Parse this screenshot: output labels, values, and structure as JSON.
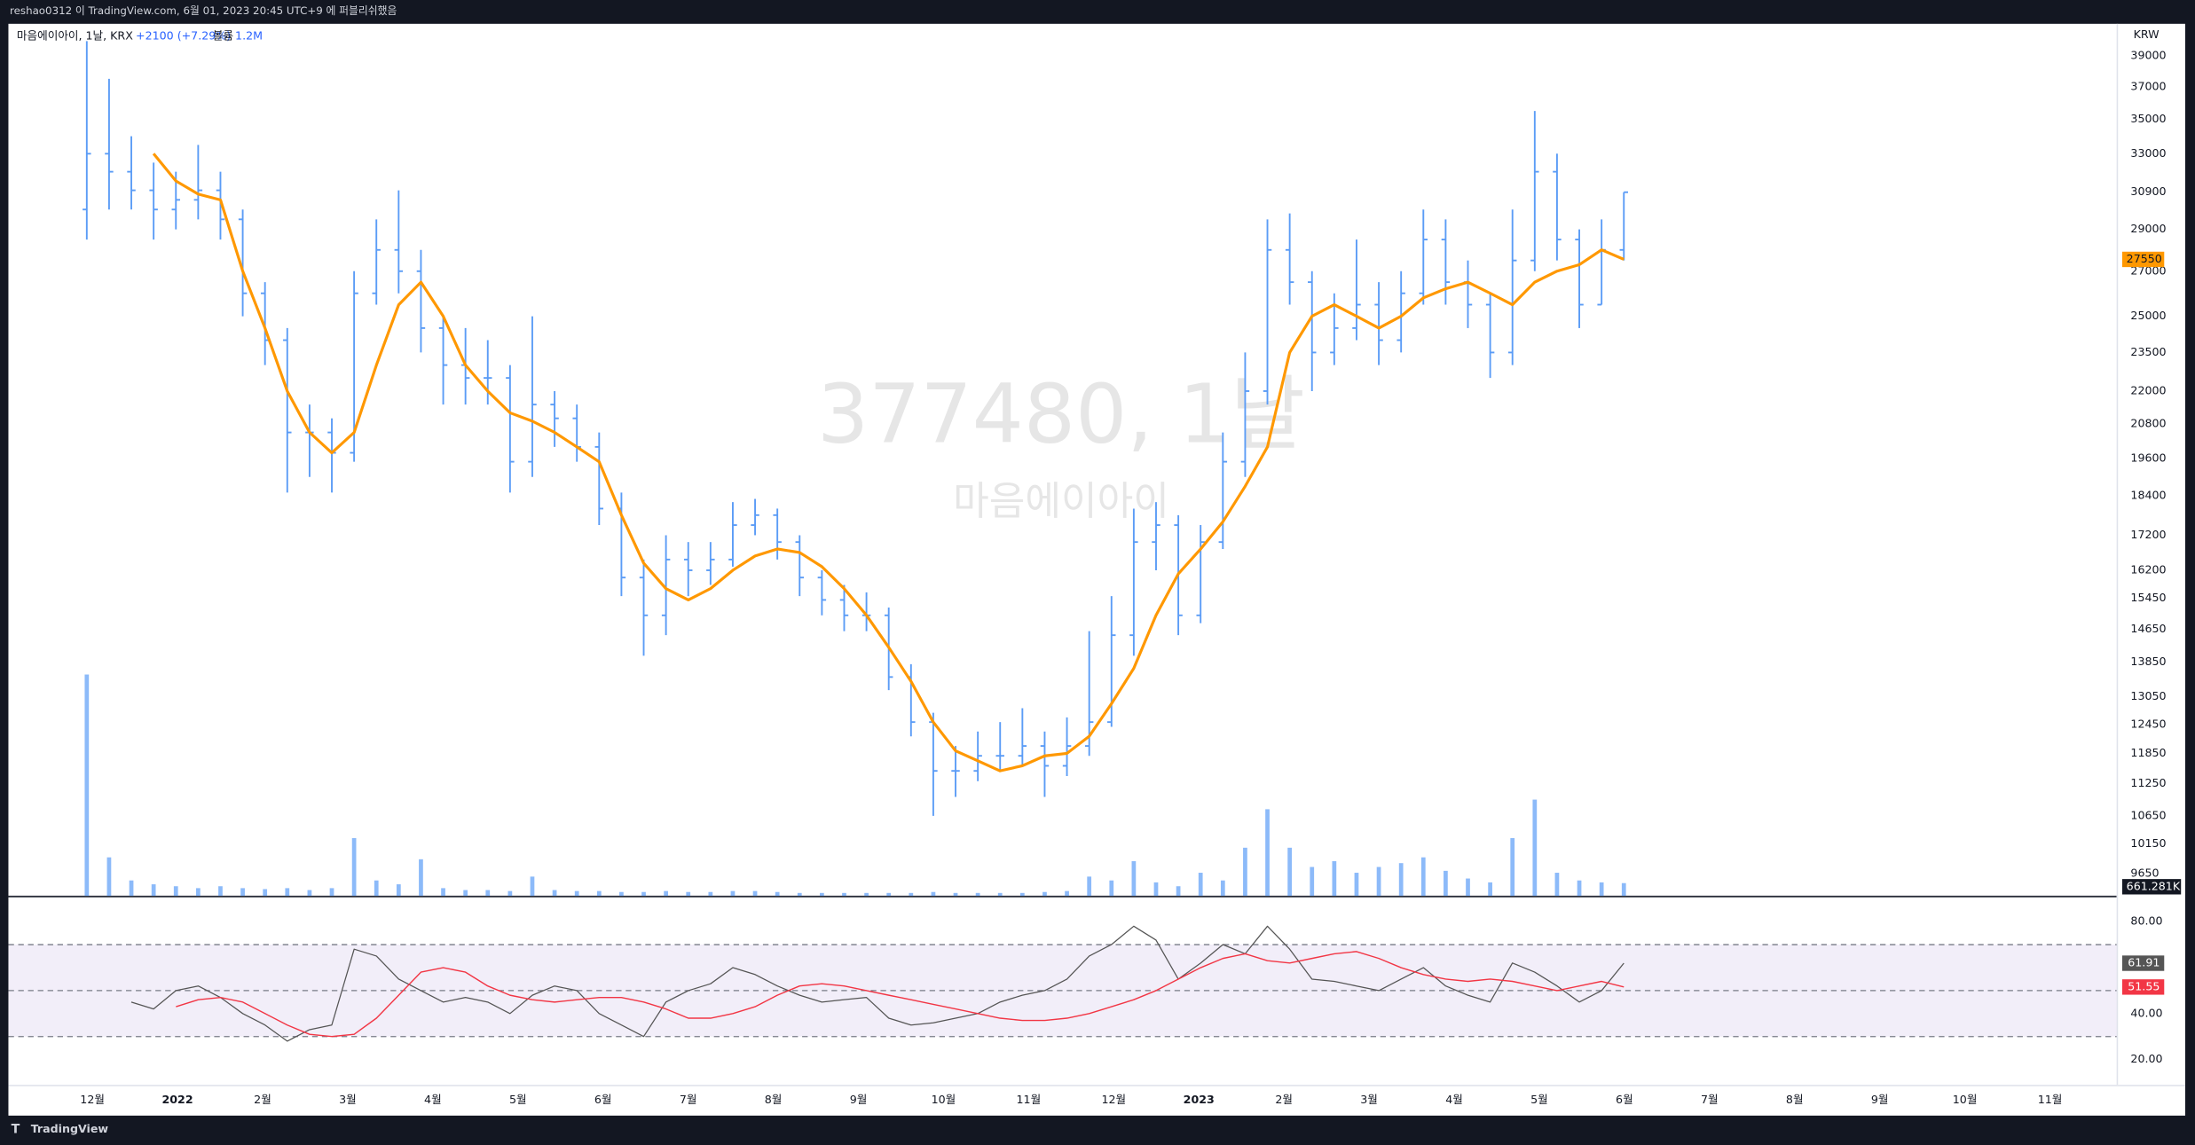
{
  "header": {
    "text": "reshao0312 이 TradingView.com, 6월 01, 2023 20:45 UTC+9 에 퍼블리쉬했음"
  },
  "footer": {
    "logo": "TradingView"
  },
  "chart_data": [
    {
      "type": "candlestick",
      "title": "마음에이아이, 1날, KRX",
      "change": "+2100 (+7.29%)",
      "watermark": [
        "377480, 1날",
        "마음에이아이"
      ],
      "currency": "KRW",
      "log_scale": true,
      "color": "#5b9cf6",
      "ylim": [
        9290,
        41100
      ],
      "yticks": [
        39000,
        37000,
        35000,
        33000,
        30900,
        29000,
        27000,
        25000,
        23500,
        22000,
        20800,
        19600,
        18400,
        17200,
        16200,
        15450,
        14650,
        13850,
        13050,
        12450,
        11850,
        11250,
        10650,
        10150,
        9650
      ],
      "x_labels": [
        "12월",
        "2022",
        "2월",
        "3월",
        "4월",
        "5월",
        "6월",
        "7월",
        "8월",
        "9월",
        "10월",
        "11월",
        "12월",
        "2023",
        "2월",
        "3월",
        "4월",
        "5월",
        "6월",
        "7월",
        "8월",
        "9월",
        "10월",
        "11월"
      ],
      "candles": [
        [
          30000,
          40000,
          28500,
          33000
        ],
        [
          33000,
          37500,
          30000,
          32000
        ],
        [
          32000,
          34000,
          30000,
          31000
        ],
        [
          31000,
          32500,
          28500,
          30000
        ],
        [
          30000,
          32000,
          29000,
          30500
        ],
        [
          30500,
          33500,
          29500,
          31000
        ],
        [
          31000,
          32000,
          28500,
          29500
        ],
        [
          29500,
          30000,
          25000,
          26000
        ],
        [
          26000,
          26500,
          23000,
          24000
        ],
        [
          24000,
          24500,
          18500,
          20500
        ],
        [
          20500,
          21500,
          19000,
          20500
        ],
        [
          20500,
          21000,
          18500,
          19800
        ],
        [
          19800,
          27000,
          19500,
          26000
        ],
        [
          26000,
          29500,
          25500,
          28000
        ],
        [
          28000,
          31000,
          26000,
          27000
        ],
        [
          27000,
          28000,
          23500,
          24500
        ],
        [
          24500,
          25000,
          21500,
          23000
        ],
        [
          23000,
          24500,
          21500,
          22500
        ],
        [
          22500,
          24000,
          21500,
          22500
        ],
        [
          22500,
          23000,
          18500,
          19500
        ],
        [
          19500,
          25000,
          19000,
          21500
        ],
        [
          21500,
          22000,
          20000,
          21000
        ],
        [
          21000,
          21500,
          19500,
          20000
        ],
        [
          20000,
          20500,
          17500,
          18000
        ],
        [
          18000,
          18500,
          15500,
          16000
        ],
        [
          16000,
          16500,
          14000,
          15000
        ],
        [
          15000,
          17200,
          14500,
          16500
        ],
        [
          16500,
          17000,
          15500,
          16200
        ],
        [
          16200,
          17000,
          15800,
          16500
        ],
        [
          16500,
          18200,
          16300,
          17500
        ],
        [
          17500,
          18300,
          17200,
          17800
        ],
        [
          17800,
          18000,
          16500,
          17000
        ],
        [
          17000,
          17200,
          15500,
          16000
        ],
        [
          16000,
          16200,
          15000,
          15400
        ],
        [
          15400,
          15800,
          14600,
          15000
        ],
        [
          15000,
          15600,
          14600,
          15000
        ],
        [
          15000,
          15200,
          13200,
          13500
        ],
        [
          13500,
          13800,
          12200,
          12500
        ],
        [
          12500,
          12700,
          10650,
          11500
        ],
        [
          11500,
          12000,
          11000,
          11500
        ],
        [
          11500,
          12300,
          11300,
          11800
        ],
        [
          11800,
          12500,
          11500,
          11800
        ],
        [
          11800,
          12800,
          11600,
          12000
        ],
        [
          12000,
          12300,
          11000,
          11600
        ],
        [
          11600,
          12600,
          11400,
          12000
        ],
        [
          12000,
          14600,
          11800,
          12500
        ],
        [
          12500,
          15500,
          12400,
          14500
        ],
        [
          14500,
          18000,
          14000,
          17000
        ],
        [
          17000,
          18200,
          16200,
          17500
        ],
        [
          17500,
          17800,
          14500,
          15000
        ],
        [
          15000,
          17500,
          14800,
          17000
        ],
        [
          17000,
          20500,
          16800,
          19500
        ],
        [
          19500,
          23500,
          19000,
          22000
        ],
        [
          22000,
          29500,
          21500,
          28000
        ],
        [
          28000,
          29800,
          25500,
          26500
        ],
        [
          26500,
          27000,
          22000,
          23500
        ],
        [
          23500,
          26000,
          23000,
          24500
        ],
        [
          24500,
          28500,
          24000,
          25500
        ],
        [
          25500,
          26500,
          23000,
          24000
        ],
        [
          24000,
          27000,
          23500,
          26000
        ],
        [
          26000,
          30000,
          25500,
          28500
        ],
        [
          28500,
          29500,
          25500,
          26500
        ],
        [
          26500,
          27500,
          24500,
          25500
        ],
        [
          25500,
          26000,
          22500,
          23500
        ],
        [
          23500,
          30000,
          23000,
          27500
        ],
        [
          27500,
          35500,
          27000,
          32000
        ],
        [
          32000,
          33000,
          27500,
          28500
        ],
        [
          28500,
          29000,
          24500,
          25500
        ],
        [
          25500,
          29500,
          25500,
          28000
        ],
        [
          28000,
          30900,
          27500,
          30900
        ]
      ],
      "ma": {
        "color": "#ff9800",
        "values": [
          null,
          null,
          null,
          33000,
          31500,
          30800,
          30500,
          27000,
          24500,
          22000,
          20500,
          19800,
          20500,
          23000,
          25500,
          26500,
          25000,
          23000,
          22000,
          21200,
          20900,
          20500,
          20000,
          19500,
          17800,
          16400,
          15700,
          15400,
          15700,
          16200,
          16600,
          16800,
          16700,
          16300,
          15700,
          15000,
          14200,
          13400,
          12500,
          11900,
          11700,
          11500,
          11600,
          11800,
          11850,
          12200,
          12900,
          13700,
          15000,
          16100,
          16800,
          17600,
          18700,
          20000,
          23500,
          25000,
          25500,
          25000,
          24500,
          25000,
          25800,
          26200,
          26500,
          26000,
          25500,
          26500,
          27000,
          27300,
          28000,
          27550
        ]
      },
      "volume": {
        "name": "볼륨",
        "legend_value": "1.2M",
        "color": "#5b9cf6",
        "lim": [
          0,
          12000000
        ],
        "last_label": "661.281K",
        "values": [
          11500000,
          2000000,
          800000,
          600000,
          500000,
          400000,
          500000,
          400000,
          350000,
          400000,
          300000,
          400000,
          3000000,
          800000,
          600000,
          1900000,
          400000,
          300000,
          300000,
          250000,
          1000000,
          300000,
          250000,
          250000,
          200000,
          200000,
          250000,
          200000,
          200000,
          250000,
          250000,
          200000,
          150000,
          150000,
          150000,
          150000,
          150000,
          150000,
          200000,
          150000,
          150000,
          150000,
          150000,
          200000,
          250000,
          1000000,
          800000,
          1800000,
          700000,
          500000,
          1200000,
          800000,
          2500000,
          4500000,
          2500000,
          1500000,
          1800000,
          1200000,
          1500000,
          1700000,
          2000000,
          1300000,
          900000,
          700000,
          3000000,
          5000000,
          1200000,
          800000,
          700000,
          661281
        ]
      }
    },
    {
      "type": "line",
      "ylim": [
        9,
        90
      ],
      "yticks": [
        {
          "value": 80,
          "label": "80.00"
        },
        {
          "value": 40,
          "label": "40.00"
        },
        {
          "value": 20,
          "label": "20.00"
        }
      ],
      "levels": [
        70,
        50,
        30
      ],
      "band_color": "#7e57c2",
      "series": [
        {
          "color": "#555555",
          "values": [
            null,
            null,
            45,
            42,
            50,
            52,
            47,
            40,
            35,
            28,
            33,
            35,
            68,
            65,
            55,
            50,
            45,
            47,
            45,
            40,
            48,
            52,
            50,
            40,
            35,
            30,
            45,
            50,
            53,
            60,
            57,
            52,
            48,
            45,
            46,
            47,
            38,
            35,
            36,
            38,
            40,
            45,
            48,
            50,
            55,
            65,
            70,
            78,
            72,
            55,
            62,
            70,
            66,
            78,
            68,
            55,
            54,
            52,
            50,
            55,
            60,
            52,
            48,
            45,
            62,
            58,
            52,
            45,
            50,
            61.91
          ]
        },
        {
          "color": "#f23645",
          "values": [
            null,
            null,
            null,
            null,
            43,
            46,
            47,
            45,
            40,
            35,
            31,
            30,
            31,
            38,
            48,
            58,
            60,
            58,
            52,
            48,
            46,
            45,
            46,
            47,
            47,
            45,
            42,
            38,
            38,
            40,
            43,
            48,
            52,
            53,
            52,
            50,
            48,
            46,
            44,
            42,
            40,
            38,
            37,
            37,
            38,
            40,
            43,
            46,
            50,
            55,
            60,
            64,
            66,
            63,
            62,
            64,
            66,
            67,
            64,
            60,
            57,
            55,
            54,
            55,
            54,
            52,
            50,
            52,
            54,
            51.55
          ]
        }
      ]
    }
  ]
}
